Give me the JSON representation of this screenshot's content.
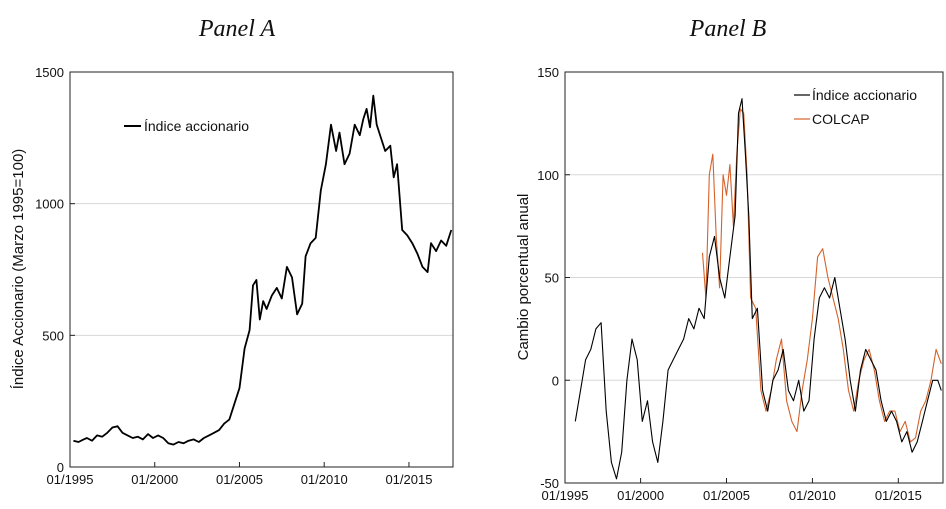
{
  "chart_data": [
    {
      "type": "line",
      "title": "Panel A",
      "xlabel": "",
      "ylabel": "Índice Accionario (Marzo 1995=100)",
      "xlim": [
        1995.0,
        2017.6
      ],
      "ylim": [
        0,
        1500
      ],
      "grid": "horizontal",
      "legend_placement": "top-left",
      "x_ticks": [
        1995,
        2000,
        2005,
        2010,
        2015
      ],
      "x_tick_labels": [
        "01/1995",
        "01/2000",
        "01/2005",
        "01/2010",
        "01/2015"
      ],
      "y_ticks": [
        0,
        500,
        1000,
        1500
      ],
      "y_tick_labels": [
        "0",
        "500",
        "1000",
        "1500"
      ],
      "series": [
        {
          "name": "Índice accionario",
          "color": "#000000",
          "x": [
            1995.2,
            1995.5,
            1995.8,
            1996.0,
            1996.3,
            1996.6,
            1996.9,
            1997.2,
            1997.5,
            1997.8,
            1998.1,
            1998.4,
            1998.7,
            1999.0,
            1999.3,
            1999.6,
            1999.9,
            2000.2,
            2000.5,
            2000.8,
            2001.1,
            2001.4,
            2001.7,
            2002.0,
            2002.3,
            2002.6,
            2002.9,
            2003.2,
            2003.5,
            2003.8,
            2004.1,
            2004.4,
            2004.7,
            2005.0,
            2005.3,
            2005.6,
            2005.8,
            2006.0,
            2006.2,
            2006.4,
            2006.6,
            2006.9,
            2007.2,
            2007.5,
            2007.8,
            2008.1,
            2008.4,
            2008.7,
            2008.9,
            2009.2,
            2009.5,
            2009.8,
            2010.1,
            2010.4,
            2010.7,
            2010.9,
            2011.2,
            2011.5,
            2011.8,
            2012.1,
            2012.3,
            2012.5,
            2012.7,
            2012.9,
            2013.1,
            2013.4,
            2013.6,
            2013.9,
            2014.1,
            2014.3,
            2014.6,
            2014.9,
            2015.2,
            2015.5,
            2015.8,
            2016.1,
            2016.3,
            2016.6,
            2016.9,
            2017.2,
            2017.5
          ],
          "values": [
            100,
            95,
            105,
            110,
            100,
            120,
            115,
            130,
            150,
            155,
            130,
            120,
            110,
            115,
            105,
            125,
            110,
            120,
            110,
            90,
            85,
            95,
            90,
            100,
            105,
            95,
            110,
            120,
            130,
            140,
            165,
            180,
            240,
            300,
            450,
            520,
            690,
            710,
            560,
            630,
            600,
            650,
            680,
            640,
            760,
            720,
            580,
            620,
            800,
            850,
            870,
            1050,
            1150,
            1300,
            1200,
            1270,
            1150,
            1190,
            1300,
            1260,
            1320,
            1360,
            1290,
            1410,
            1300,
            1240,
            1200,
            1220,
            1100,
            1150,
            900,
            880,
            850,
            810,
            760,
            740,
            850,
            820,
            860,
            840,
            900
          ]
        }
      ]
    },
    {
      "type": "line",
      "title": "Panel B",
      "xlabel": "",
      "ylabel": "Cambio porcentual anual",
      "xlim": [
        1995.6,
        2017.6
      ],
      "ylim": [
        -50,
        150
      ],
      "grid": "horizontal",
      "legend_placement": "top-right",
      "x_ticks": [
        1995,
        2000,
        2005,
        2010,
        2015
      ],
      "x_tick_labels": [
        "01/1995",
        "01/2000",
        "01/2005",
        "01/2010",
        "01/2015"
      ],
      "y_ticks": [
        -50,
        0,
        50,
        100,
        150
      ],
      "y_tick_labels": [
        "-50",
        "0",
        "50",
        "100",
        "150"
      ],
      "series": [
        {
          "name": "Índice accionario",
          "color": "#000000",
          "x": [
            1996.2,
            1996.5,
            1996.8,
            1997.1,
            1997.4,
            1997.7,
            1998.0,
            1998.3,
            1998.6,
            1998.9,
            1999.2,
            1999.5,
            1999.8,
            2000.1,
            2000.4,
            2000.7,
            2001.0,
            2001.3,
            2001.6,
            2001.9,
            2002.2,
            2002.5,
            2002.8,
            2003.1,
            2003.4,
            2003.7,
            2004.0,
            2004.3,
            2004.6,
            2004.9,
            2005.2,
            2005.5,
            2005.7,
            2005.9,
            2006.1,
            2006.3,
            2006.5,
            2006.8,
            2007.1,
            2007.4,
            2007.7,
            2008.0,
            2008.3,
            2008.6,
            2008.9,
            2009.2,
            2009.5,
            2009.8,
            2010.1,
            2010.4,
            2010.7,
            2011.0,
            2011.3,
            2011.6,
            2011.9,
            2012.2,
            2012.5,
            2012.8,
            2013.1,
            2013.4,
            2013.7,
            2014.0,
            2014.3,
            2014.6,
            2014.9,
            2015.2,
            2015.5,
            2015.8,
            2016.1,
            2016.4,
            2016.7,
            2017.0,
            2017.3,
            2017.5
          ],
          "values": [
            -20,
            -5,
            10,
            15,
            25,
            28,
            -15,
            -40,
            -48,
            -35,
            0,
            20,
            10,
            -20,
            -10,
            -30,
            -40,
            -20,
            5,
            10,
            15,
            20,
            30,
            25,
            35,
            30,
            60,
            70,
            50,
            40,
            60,
            80,
            130,
            137,
            110,
            80,
            30,
            35,
            -5,
            -15,
            0,
            5,
            15,
            -5,
            -10,
            0,
            -15,
            -10,
            20,
            40,
            45,
            40,
            50,
            35,
            20,
            0,
            -15,
            5,
            15,
            10,
            5,
            -10,
            -20,
            -15,
            -20,
            -30,
            -25,
            -35,
            -30,
            -20,
            -10,
            0,
            0,
            -5
          ]
        },
        {
          "name": "COLCAP",
          "color": "#d4622a",
          "x": [
            2003.6,
            2003.8,
            2004.0,
            2004.2,
            2004.4,
            2004.6,
            2004.8,
            2005.0,
            2005.2,
            2005.4,
            2005.6,
            2005.8,
            2006.0,
            2006.2,
            2006.4,
            2006.7,
            2007.0,
            2007.3,
            2007.6,
            2007.9,
            2008.2,
            2008.5,
            2008.8,
            2009.1,
            2009.4,
            2009.7,
            2010.0,
            2010.3,
            2010.6,
            2010.9,
            2011.2,
            2011.5,
            2011.8,
            2012.1,
            2012.4,
            2012.7,
            2013.0,
            2013.3,
            2013.6,
            2013.9,
            2014.2,
            2014.5,
            2014.8,
            2015.1,
            2015.4,
            2015.7,
            2016.0,
            2016.3,
            2016.6,
            2016.9,
            2017.2,
            2017.5
          ],
          "values": [
            62,
            40,
            100,
            110,
            70,
            45,
            100,
            90,
            105,
            75,
            110,
            132,
            130,
            100,
            40,
            35,
            -5,
            -15,
            -5,
            10,
            20,
            -10,
            -20,
            -25,
            -5,
            10,
            30,
            60,
            64,
            50,
            40,
            30,
            15,
            -5,
            -15,
            0,
            10,
            15,
            5,
            -10,
            -20,
            -15,
            -15,
            -25,
            -20,
            -30,
            -28,
            -15,
            -10,
            0,
            15,
            8
          ]
        }
      ]
    }
  ]
}
